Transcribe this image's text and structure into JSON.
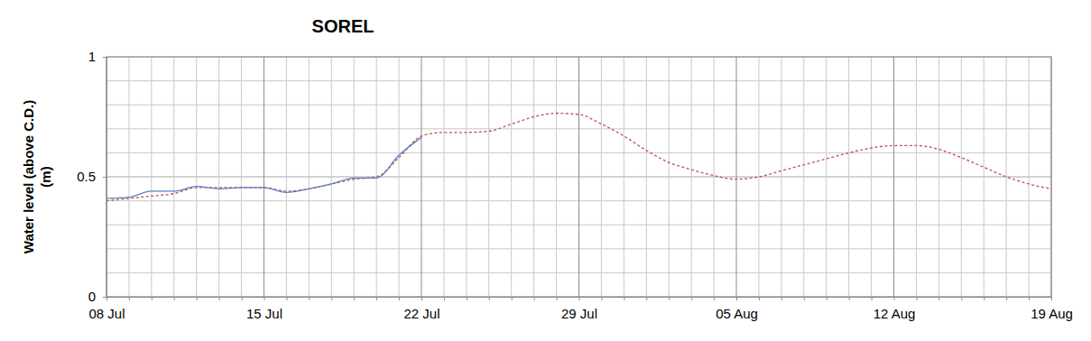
{
  "chart_data": {
    "type": "line",
    "title": "SOREL",
    "y_label": [
      "Water level (above C.D.)",
      "(m)"
    ],
    "categories": [
      "08 Jul",
      null,
      null,
      null,
      null,
      null,
      null,
      "15 Jul",
      null,
      null,
      null,
      null,
      null,
      null,
      "22 Jul",
      null,
      null,
      null,
      null,
      null,
      null,
      "29 Jul",
      null,
      null,
      null,
      null,
      null,
      null,
      "05 Aug",
      null,
      null,
      null,
      null,
      null,
      null,
      "12 Aug",
      null,
      null,
      null,
      null,
      null,
      null,
      "19 Aug"
    ],
    "series": [
      {
        "color": "#c0504d",
        "line_style": "dashed",
        "values": [
          0.4,
          0.41,
          0.42,
          0.43,
          0.455,
          0.455,
          0.455,
          0.455,
          0.44,
          0.45,
          0.47,
          0.49,
          0.5,
          0.58,
          0.67,
          0.685,
          0.685,
          0.69,
          0.72,
          0.75,
          0.765,
          0.76,
          0.72,
          0.67,
          0.61,
          0.56,
          0.53,
          0.505,
          0.49,
          0.5,
          0.525,
          0.55,
          0.575,
          0.6,
          0.62,
          0.63,
          0.63,
          0.615,
          0.58,
          0.54,
          0.5,
          0.47,
          0.45
        ]
      },
      {
        "color": "#5b7fc9",
        "line_style": "solid",
        "values": [
          0.41,
          0.415,
          0.44,
          0.44,
          0.46,
          0.45,
          0.455,
          0.455,
          0.435,
          0.45,
          0.47,
          0.495,
          0.495,
          0.59,
          0.665,
          null,
          null,
          null,
          null,
          null,
          null,
          null,
          null,
          null,
          null,
          null,
          null,
          null,
          null,
          null,
          null,
          null,
          null,
          null,
          null,
          null,
          null,
          null,
          null,
          null,
          null,
          null,
          null
        ]
      }
    ],
    "ylim": [
      0,
      1
    ],
    "yticks": [
      0,
      0.5,
      1
    ],
    "grid": true
  }
}
